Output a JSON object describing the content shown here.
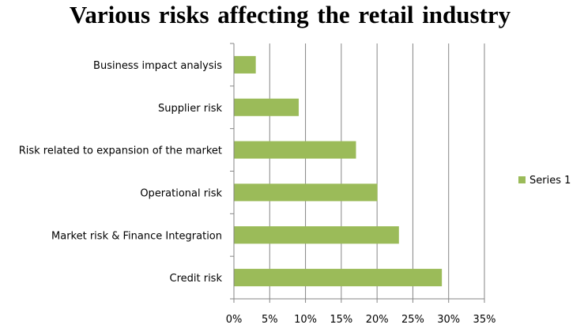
{
  "chart_data": {
    "type": "bar",
    "orientation": "horizontal",
    "title": "Various risks affecting the retail industry",
    "categories": [
      "Credit risk",
      "Market risk & Finance Integration",
      "Operational risk",
      "Risk related to expansion of the market",
      "Supplier risk",
      "Business impact analysis"
    ],
    "series": [
      {
        "name": "Series 1",
        "values": [
          29,
          23,
          20,
          17,
          9,
          3
        ],
        "color": "#9BBB59"
      }
    ],
    "xlim": [
      0,
      35
    ],
    "x_ticks": [
      "0%",
      "5%",
      "10%",
      "15%",
      "20%",
      "25%",
      "30%",
      "35%"
    ],
    "value_unit": "%",
    "grid": "vertical",
    "legend_position": "right",
    "xlabel": "",
    "ylabel": ""
  }
}
